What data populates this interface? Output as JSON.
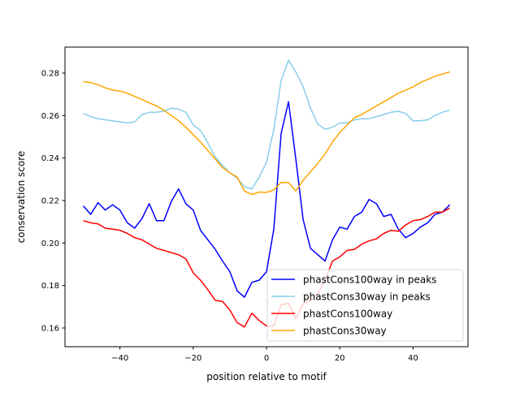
{
  "chart_data": {
    "type": "line",
    "title": "",
    "xlabel": "position relative to motif",
    "ylabel": "conservation score",
    "xlim": [
      -55,
      55
    ],
    "ylim": [
      0.1512,
      0.2922
    ],
    "xticks": [
      -40,
      -20,
      0,
      20,
      40
    ],
    "xtick_labels": [
      "−40",
      "−20",
      "0",
      "20",
      "40"
    ],
    "yticks": [
      0.16,
      0.18,
      0.2,
      0.22,
      0.24,
      0.26,
      0.28
    ],
    "ytick_labels": [
      "0.16",
      "0.18",
      "0.20",
      "0.22",
      "0.24",
      "0.26",
      "0.28"
    ],
    "grid": false,
    "legend_position": "lower-right",
    "x": [
      -50,
      -48,
      -46,
      -44,
      -42,
      -40,
      -38,
      -36,
      -34,
      -32,
      -30,
      -28,
      -26,
      -24,
      -22,
      -20,
      -18,
      -16,
      -14,
      -12,
      -10,
      -8,
      -6,
      -4,
      -2,
      0,
      2,
      4,
      6,
      8,
      10,
      12,
      14,
      16,
      18,
      20,
      22,
      24,
      26,
      28,
      30,
      32,
      34,
      36,
      38,
      40,
      42,
      44,
      46,
      48,
      50
    ],
    "series": [
      {
        "name": "phastCons100way in peaks",
        "color": "#0000ff",
        "values": [
          0.2175,
          0.2135,
          0.219,
          0.2155,
          0.218,
          0.2155,
          0.2095,
          0.207,
          0.2115,
          0.2185,
          0.2105,
          0.2105,
          0.2195,
          0.2255,
          0.2185,
          0.2155,
          0.206,
          0.2015,
          0.197,
          0.1915,
          0.1865,
          0.1775,
          0.1745,
          0.1815,
          0.1825,
          0.1865,
          0.2065,
          0.2515,
          0.2665,
          0.2395,
          0.211,
          0.1975,
          0.1945,
          0.1915,
          0.2015,
          0.2075,
          0.2065,
          0.2125,
          0.2145,
          0.2205,
          0.2185,
          0.2125,
          0.2135,
          0.2065,
          0.2025,
          0.2045,
          0.2075,
          0.2095,
          0.2135,
          0.2145,
          0.218
        ]
      },
      {
        "name": "phastCons30way in peaks",
        "color": "#87ceeb",
        "values": [
          0.261,
          0.2595,
          0.2585,
          0.258,
          0.2575,
          0.257,
          0.2565,
          0.257,
          0.2605,
          0.2615,
          0.2615,
          0.262,
          0.2635,
          0.263,
          0.2615,
          0.2555,
          0.253,
          0.247,
          0.2405,
          0.2365,
          0.233,
          0.2305,
          0.2265,
          0.2255,
          0.231,
          0.238,
          0.2535,
          0.2765,
          0.286,
          0.2805,
          0.2735,
          0.2635,
          0.256,
          0.2535,
          0.2545,
          0.2565,
          0.2565,
          0.258,
          0.2585,
          0.2585,
          0.2595,
          0.2605,
          0.2615,
          0.262,
          0.261,
          0.2575,
          0.2575,
          0.258,
          0.26,
          0.2615,
          0.2625
        ]
      },
      {
        "name": "phastCons100way",
        "color": "#ff0000",
        "values": [
          0.2105,
          0.2095,
          0.209,
          0.207,
          0.2065,
          0.206,
          0.2045,
          0.2025,
          0.2015,
          0.1995,
          0.1975,
          0.1965,
          0.1955,
          0.1945,
          0.1925,
          0.186,
          0.1825,
          0.178,
          0.173,
          0.1725,
          0.1685,
          0.1625,
          0.1605,
          0.167,
          0.1635,
          0.161,
          0.161,
          0.171,
          0.1715,
          0.1645,
          0.1715,
          0.173,
          0.176,
          0.1825,
          0.1915,
          0.1935,
          0.1965,
          0.197,
          0.1995,
          0.201,
          0.202,
          0.2045,
          0.206,
          0.2055,
          0.2085,
          0.2105,
          0.211,
          0.2125,
          0.2145,
          0.2145,
          0.2165
        ]
      },
      {
        "name": "phastCons30way",
        "color": "#ffa500",
        "values": [
          0.276,
          0.2755,
          0.2745,
          0.273,
          0.272,
          0.2715,
          0.2705,
          0.269,
          0.2675,
          0.266,
          0.2645,
          0.2625,
          0.26,
          0.2575,
          0.2545,
          0.251,
          0.2475,
          0.2435,
          0.2395,
          0.2355,
          0.233,
          0.231,
          0.2245,
          0.2228,
          0.224,
          0.2238,
          0.225,
          0.2285,
          0.2285,
          0.2245,
          0.2295,
          0.2335,
          0.2375,
          0.242,
          0.2475,
          0.252,
          0.2555,
          0.259,
          0.2605,
          0.2625,
          0.2645,
          0.2665,
          0.2685,
          0.2705,
          0.272,
          0.2735,
          0.2755,
          0.277,
          0.2785,
          0.2795,
          0.2805
        ]
      }
    ]
  }
}
